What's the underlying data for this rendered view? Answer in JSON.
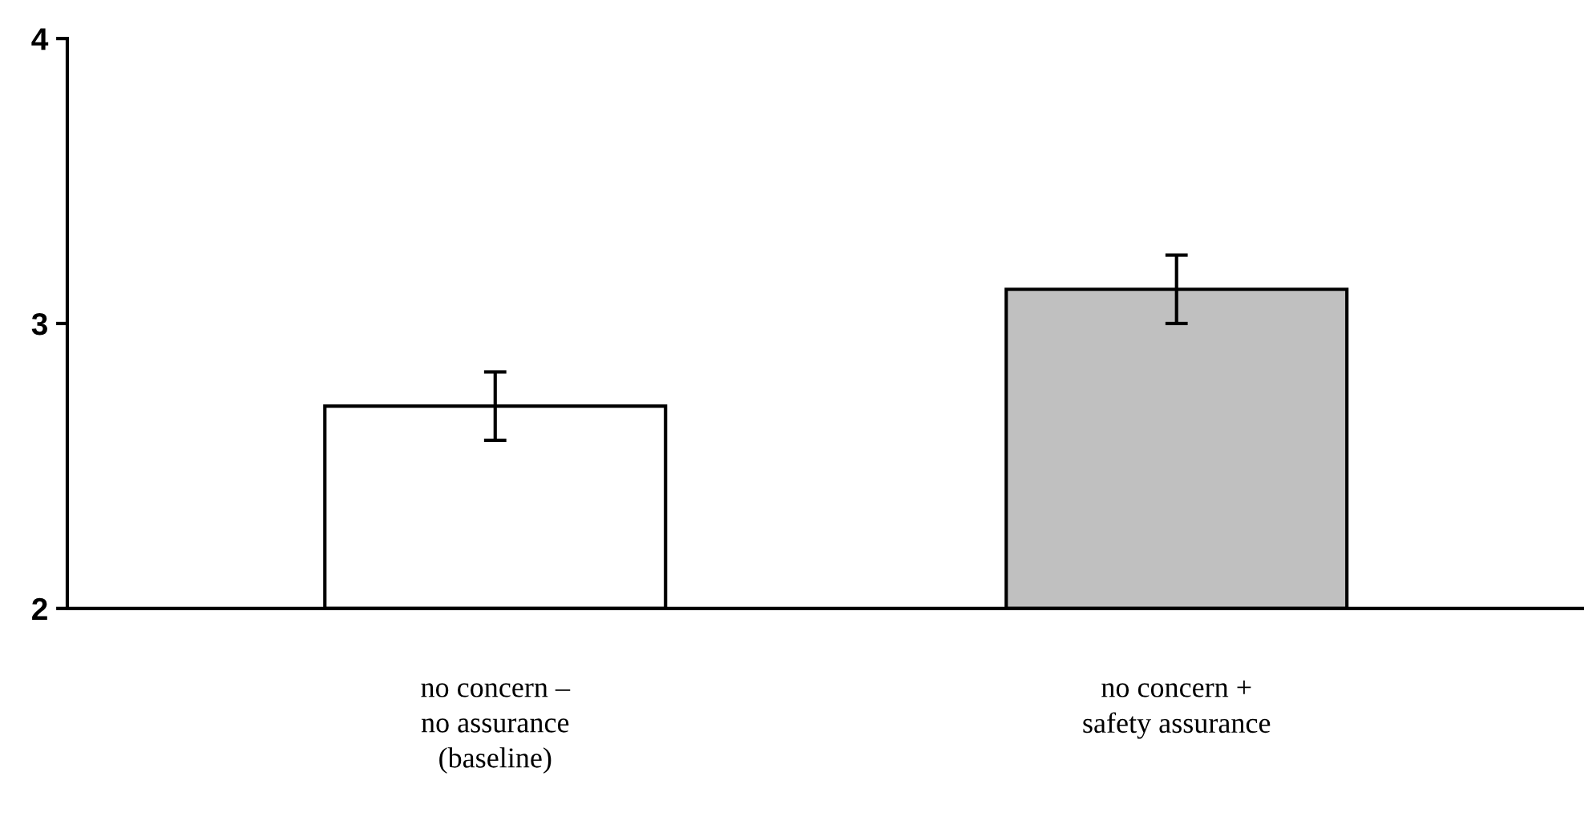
{
  "chart_data": {
    "type": "bar",
    "categories": [
      "no concern –\nno assurance\n(baseline)",
      "no concern +\nsafety assurance"
    ],
    "values": [
      2.71,
      3.12
    ],
    "colors": [
      "#ffffff",
      "#c0c0c0"
    ],
    "errors": [
      0.12,
      0.12
    ],
    "ylim": [
      2,
      4
    ],
    "yticks": [
      2,
      3,
      4
    ],
    "grid": false,
    "legend": false
  }
}
